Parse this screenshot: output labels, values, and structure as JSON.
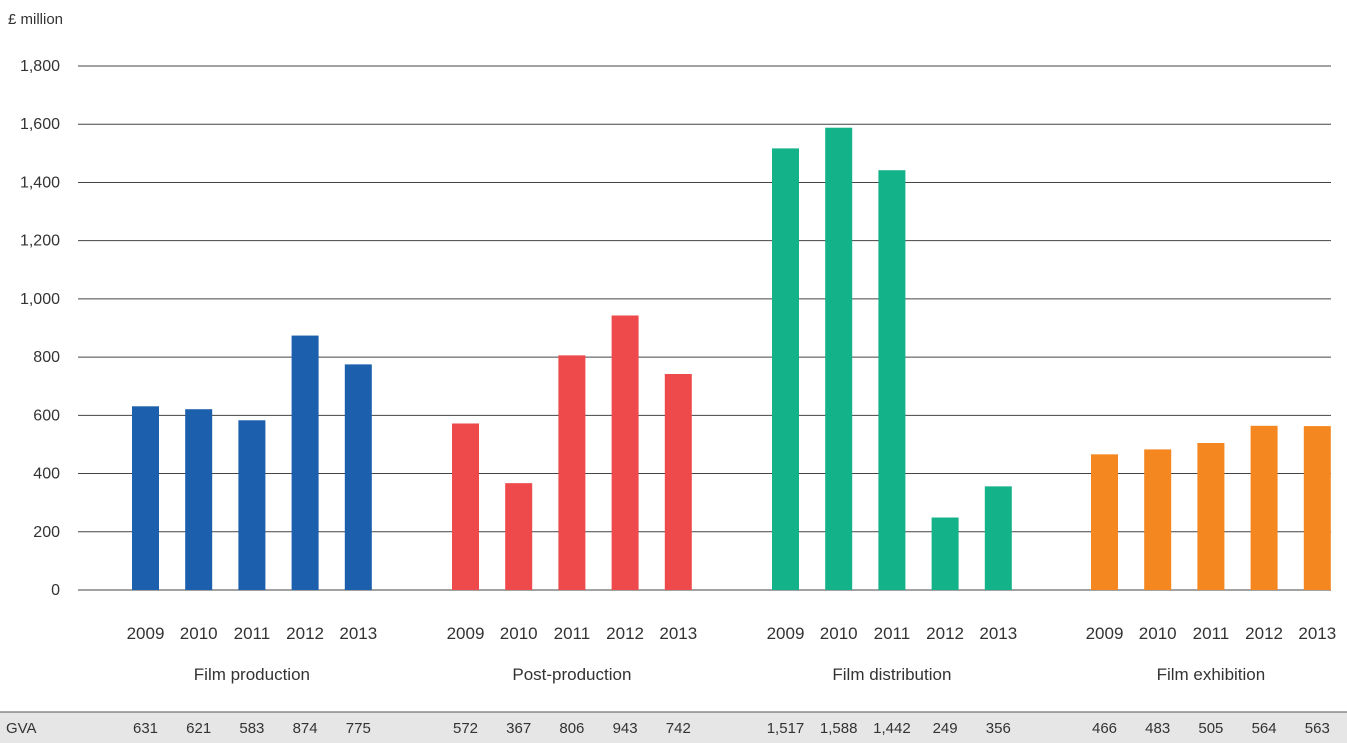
{
  "chart_data": {
    "type": "bar",
    "ylabel": "£ million",
    "ylim": [
      0,
      1800
    ],
    "yticks": [
      "0",
      "200",
      "400",
      "600",
      "800",
      "1,000",
      "1,200",
      "1,400",
      "1,600",
      "1,800"
    ],
    "grid": true,
    "table_row_label": "GVA",
    "groups": [
      {
        "name": "Film production",
        "color": "#1b5fad",
        "categories": [
          "2009",
          "2010",
          "2011",
          "2012",
          "2013"
        ],
        "values": [
          631,
          621,
          583,
          874,
          775
        ],
        "value_labels": [
          "631",
          "621",
          "583",
          "874",
          "775"
        ]
      },
      {
        "name": "Post-production",
        "color": "#ee4a4b",
        "categories": [
          "2009",
          "2010",
          "2011",
          "2012",
          "2013"
        ],
        "values": [
          572,
          367,
          806,
          943,
          742
        ],
        "value_labels": [
          "572",
          "367",
          "806",
          "943",
          "742"
        ]
      },
      {
        "name": "Film distribution",
        "color": "#13b289",
        "categories": [
          "2009",
          "2010",
          "2011",
          "2012",
          "2013"
        ],
        "values": [
          1517,
          1588,
          1442,
          249,
          356
        ],
        "value_labels": [
          "1,517",
          "1,588",
          "1,442",
          "249",
          "356"
        ]
      },
      {
        "name": "Film exhibition",
        "color": "#f58720",
        "categories": [
          "2009",
          "2010",
          "2011",
          "2012",
          "2013"
        ],
        "values": [
          466,
          483,
          505,
          564,
          563
        ],
        "value_labels": [
          "466",
          "483",
          "505",
          "564",
          "563"
        ]
      }
    ]
  }
}
